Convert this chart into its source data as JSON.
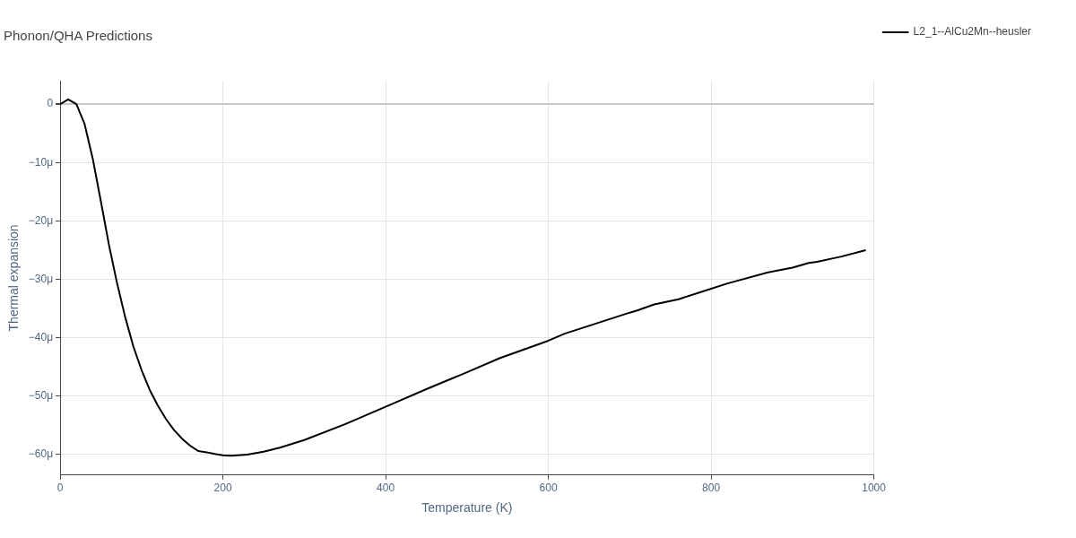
{
  "chart_data": {
    "type": "line",
    "title": "Phonon/QHA Predictions",
    "xlabel": "Temperature (K)",
    "ylabel": "Thermal expansion",
    "x": [
      0,
      10,
      20,
      30,
      40,
      50,
      60,
      70,
      80,
      90,
      100,
      110,
      120,
      130,
      140,
      150,
      160,
      170,
      180,
      190,
      200,
      210,
      230,
      250,
      270,
      300,
      350,
      400,
      450,
      500,
      540,
      600,
      620,
      700,
      710,
      730,
      760,
      800,
      820,
      870,
      900,
      920,
      930,
      960,
      990
    ],
    "series": [
      {
        "name": "L2_1--AlCu2Mn--heusler",
        "color": "#000000",
        "values": [
          0,
          0.8,
          0,
          -3.4,
          -9.3,
          -16.6,
          -24.1,
          -30.7,
          -36.5,
          -41.5,
          -45.5,
          -48.9,
          -51.6,
          -53.9,
          -55.8,
          -57.3,
          -58.5,
          -59.4,
          -59.6,
          -59.9,
          -60.1,
          -60.2,
          -60,
          -59.5,
          -58.8,
          -57.5,
          -54.8,
          -51.8,
          -48.8,
          -45.9,
          -43.5,
          -40.5,
          -39.3,
          -35.7,
          -35.3,
          -34.3,
          -33.4,
          -31.6,
          -30.7,
          -28.8,
          -28,
          -27.2,
          -27,
          -26.1,
          -25
        ]
      }
    ],
    "xlim": [
      0,
      1000
    ],
    "xticks": [
      0,
      200,
      400,
      600,
      800,
      1000
    ],
    "ylim": [
      -63.5,
      4
    ],
    "yticks": [
      0,
      {
        "value": -10,
        "label": "−10μ"
      },
      {
        "value": -20,
        "label": "−20μ"
      },
      {
        "value": -30,
        "label": "−30μ"
      },
      {
        "value": -40,
        "label": "−40μ"
      },
      {
        "value": -50,
        "label": "−50μ"
      },
      {
        "value": -60,
        "label": "−60μ"
      }
    ],
    "grid": true,
    "legend": "top right",
    "marker": "none",
    "line_style": "solid"
  }
}
